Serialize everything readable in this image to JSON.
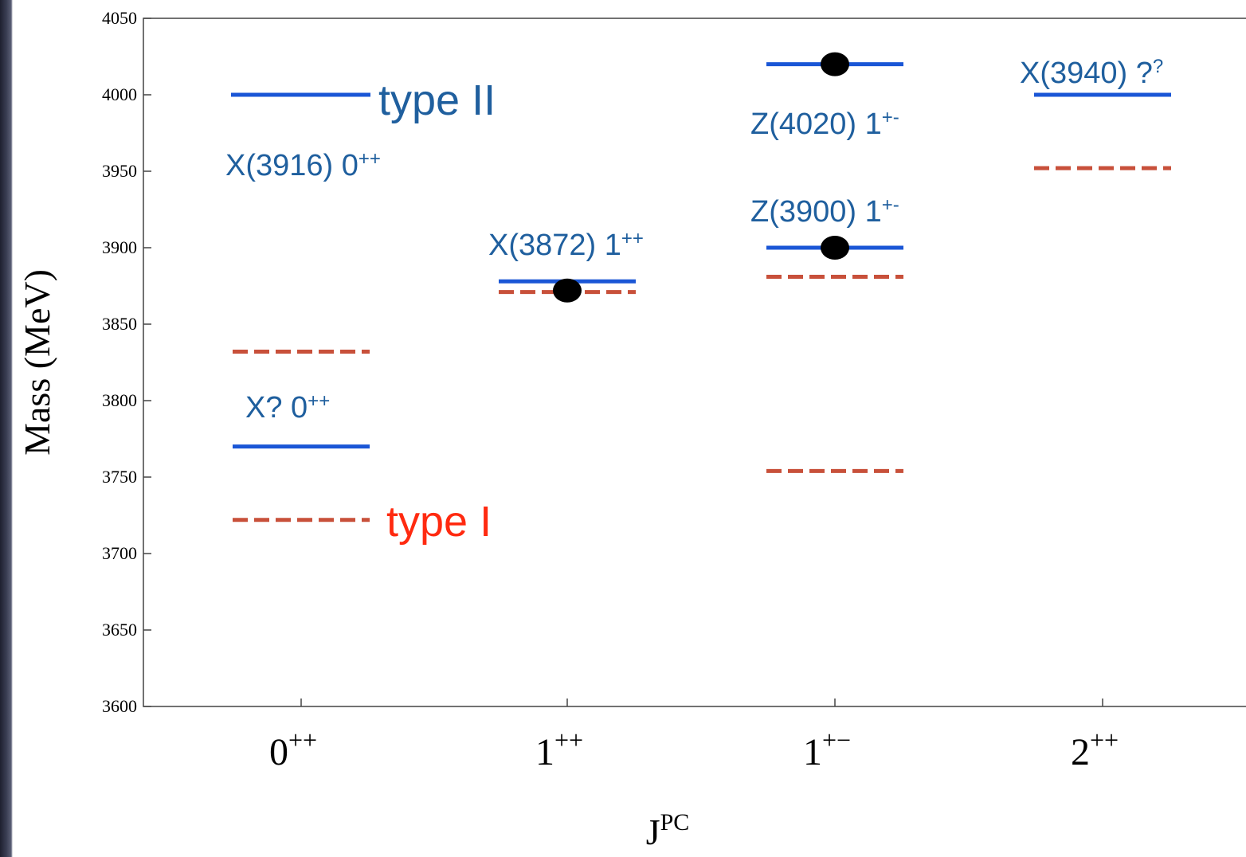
{
  "chart_data": {
    "type": "level-diagram",
    "xlabel": "J",
    "xlabel_sup": "PC",
    "ylabel": "Mass (MeV)",
    "ylim": [
      3600,
      4050
    ],
    "yticks": [
      3600,
      3650,
      3700,
      3750,
      3800,
      3850,
      3900,
      3950,
      4000,
      4050
    ],
    "categories": [
      {
        "base": "0",
        "sup": "++"
      },
      {
        "base": "1",
        "sup": "++"
      },
      {
        "base": "1",
        "sup": "+−"
      },
      {
        "base": "2",
        "sup": "++"
      }
    ],
    "series": [
      {
        "name": "type II",
        "style": "solid",
        "color": "#1a56d6",
        "levels": [
          {
            "category": 0,
            "mass": 4000
          },
          {
            "category": 0,
            "mass": 3770
          },
          {
            "category": 1,
            "mass": 3878
          },
          {
            "category": 2,
            "mass": 4020
          },
          {
            "category": 2,
            "mass": 3900
          },
          {
            "category": 3,
            "mass": 4000
          }
        ]
      },
      {
        "name": "type I",
        "style": "dashed",
        "color": "#c8503a",
        "levels": [
          {
            "category": 0,
            "mass": 3832
          },
          {
            "category": 0,
            "mass": 3722
          },
          {
            "category": 1,
            "mass": 3871
          },
          {
            "category": 2,
            "mass": 3881
          },
          {
            "category": 2,
            "mass": 3754
          },
          {
            "category": 3,
            "mass": 3952
          }
        ]
      }
    ],
    "observed": [
      {
        "category": 1,
        "mass": 3872
      },
      {
        "category": 2,
        "mass": 4020
      },
      {
        "category": 2,
        "mass": 3900
      }
    ],
    "annotations": [
      {
        "text": "X(3916) 0",
        "sup": "++"
      },
      {
        "text": "X? 0",
        "sup": "++"
      },
      {
        "text": "X(3872) 1",
        "sup": "++"
      },
      {
        "text": "Z(4020) 1",
        "sup": "+-"
      },
      {
        "text": "Z(3900) 1",
        "sup": "+-"
      },
      {
        "text": "X(3940) ?",
        "sup": "?"
      }
    ],
    "legend_labels": {
      "type_II": "type II",
      "type_I": "type I"
    }
  },
  "colors": {
    "solid": "#1a56d6",
    "dashed": "#c8503a",
    "annotation": "#1f5f9e",
    "type_I_label": "#ff2a10"
  }
}
